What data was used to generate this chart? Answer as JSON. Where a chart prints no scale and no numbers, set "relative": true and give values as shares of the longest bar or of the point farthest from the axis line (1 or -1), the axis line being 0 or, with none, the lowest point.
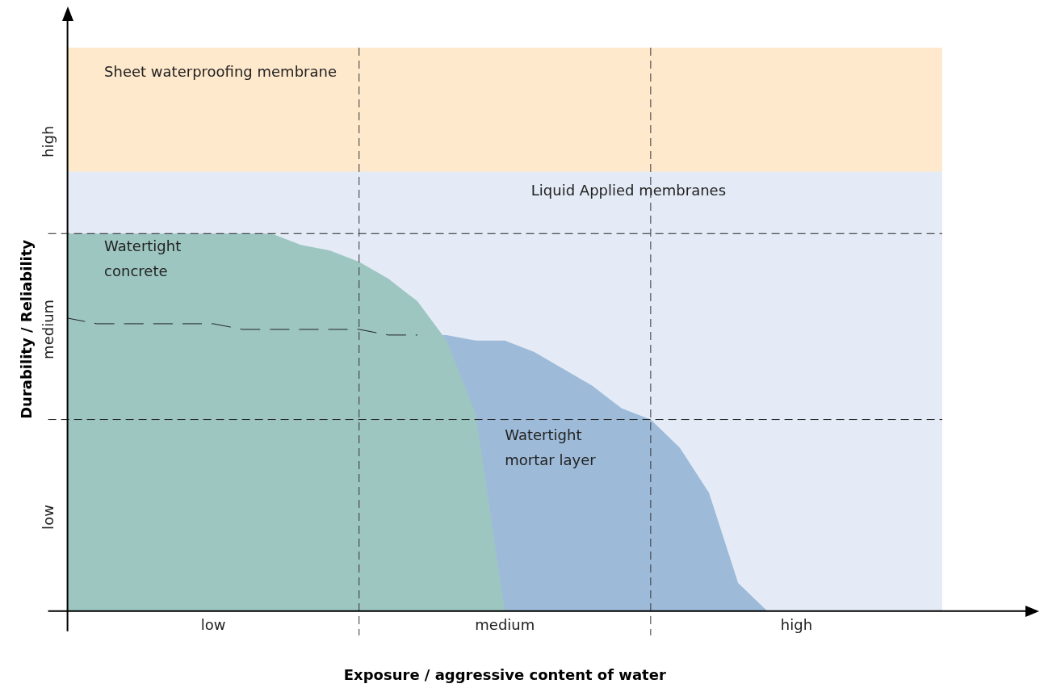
{
  "chart_data": {
    "type": "area",
    "relative": true,
    "legend": false,
    "grid": "x",
    "xlabel": "Exposure / aggressive content of water",
    "ylabel": "Durability / Reliability",
    "categories": [
      null,
      null,
      null,
      null,
      null,
      "low",
      null,
      null,
      null,
      null,
      null,
      null,
      null,
      null,
      null,
      "medium",
      null,
      null,
      null,
      null,
      null,
      null,
      null,
      null,
      null,
      "high",
      null,
      null,
      null,
      null,
      null
    ],
    "series": [
      {
        "name": "Sheet waterproofing membrane",
        "color": "#ffe9cc",
        "values": [
          1,
          1,
          1,
          1,
          1,
          1,
          1,
          1,
          1,
          1,
          1,
          1,
          1,
          1,
          1,
          1,
          1,
          1,
          1,
          1,
          1,
          1,
          1,
          1,
          1,
          1,
          1,
          1,
          1,
          1,
          1
        ]
      },
      {
        "name": "Liquid Applied membranes",
        "color": "#e4ebf6",
        "values": [
          0.78,
          0.78,
          0.78,
          0.78,
          0.78,
          0.78,
          0.78,
          0.78,
          0.78,
          0.78,
          0.78,
          0.78,
          0.78,
          0.78,
          0.78,
          0.78,
          0.78,
          0.78,
          0.78,
          0.78,
          0.78,
          0.78,
          0.78,
          0.78,
          0.78,
          0.78,
          0.78,
          0.78,
          0.78,
          0.78,
          0.78
        ]
      },
      {
        "name": "Watertight mortar layer",
        "color": "#9dbbd9",
        "values": [
          0.52,
          0.51,
          0.51,
          0.51,
          0.51,
          0.51,
          0.5,
          0.5,
          0.5,
          0.5,
          0.5,
          0.49,
          0.49,
          0.49,
          0.48,
          0.48,
          0.46,
          0.43,
          0.4,
          0.36,
          0.34,
          0.29,
          0.21,
          0.05,
          0,
          0,
          0,
          0,
          0,
          0,
          0
        ]
      },
      {
        "name": "Watertight concrete",
        "color": "#9dc6c1",
        "values": [
          0.67,
          0.67,
          0.67,
          0.67,
          0.67,
          0.67,
          0.67,
          0.67,
          0.65,
          0.64,
          0.62,
          0.59,
          0.55,
          0.48,
          0.35,
          0,
          0,
          0,
          0,
          0,
          0,
          0,
          0,
          0,
          0,
          0,
          0,
          0,
          0,
          0,
          0
        ]
      }
    ],
    "ref_lines": [
      {
        "axis": "y",
        "value": 0.34,
        "line_style": "dashed"
      },
      {
        "axis": "y",
        "value": 0.67,
        "line_style": "dashed"
      }
    ],
    "annotations": [
      "low",
      "medium",
      "high"
    ]
  }
}
